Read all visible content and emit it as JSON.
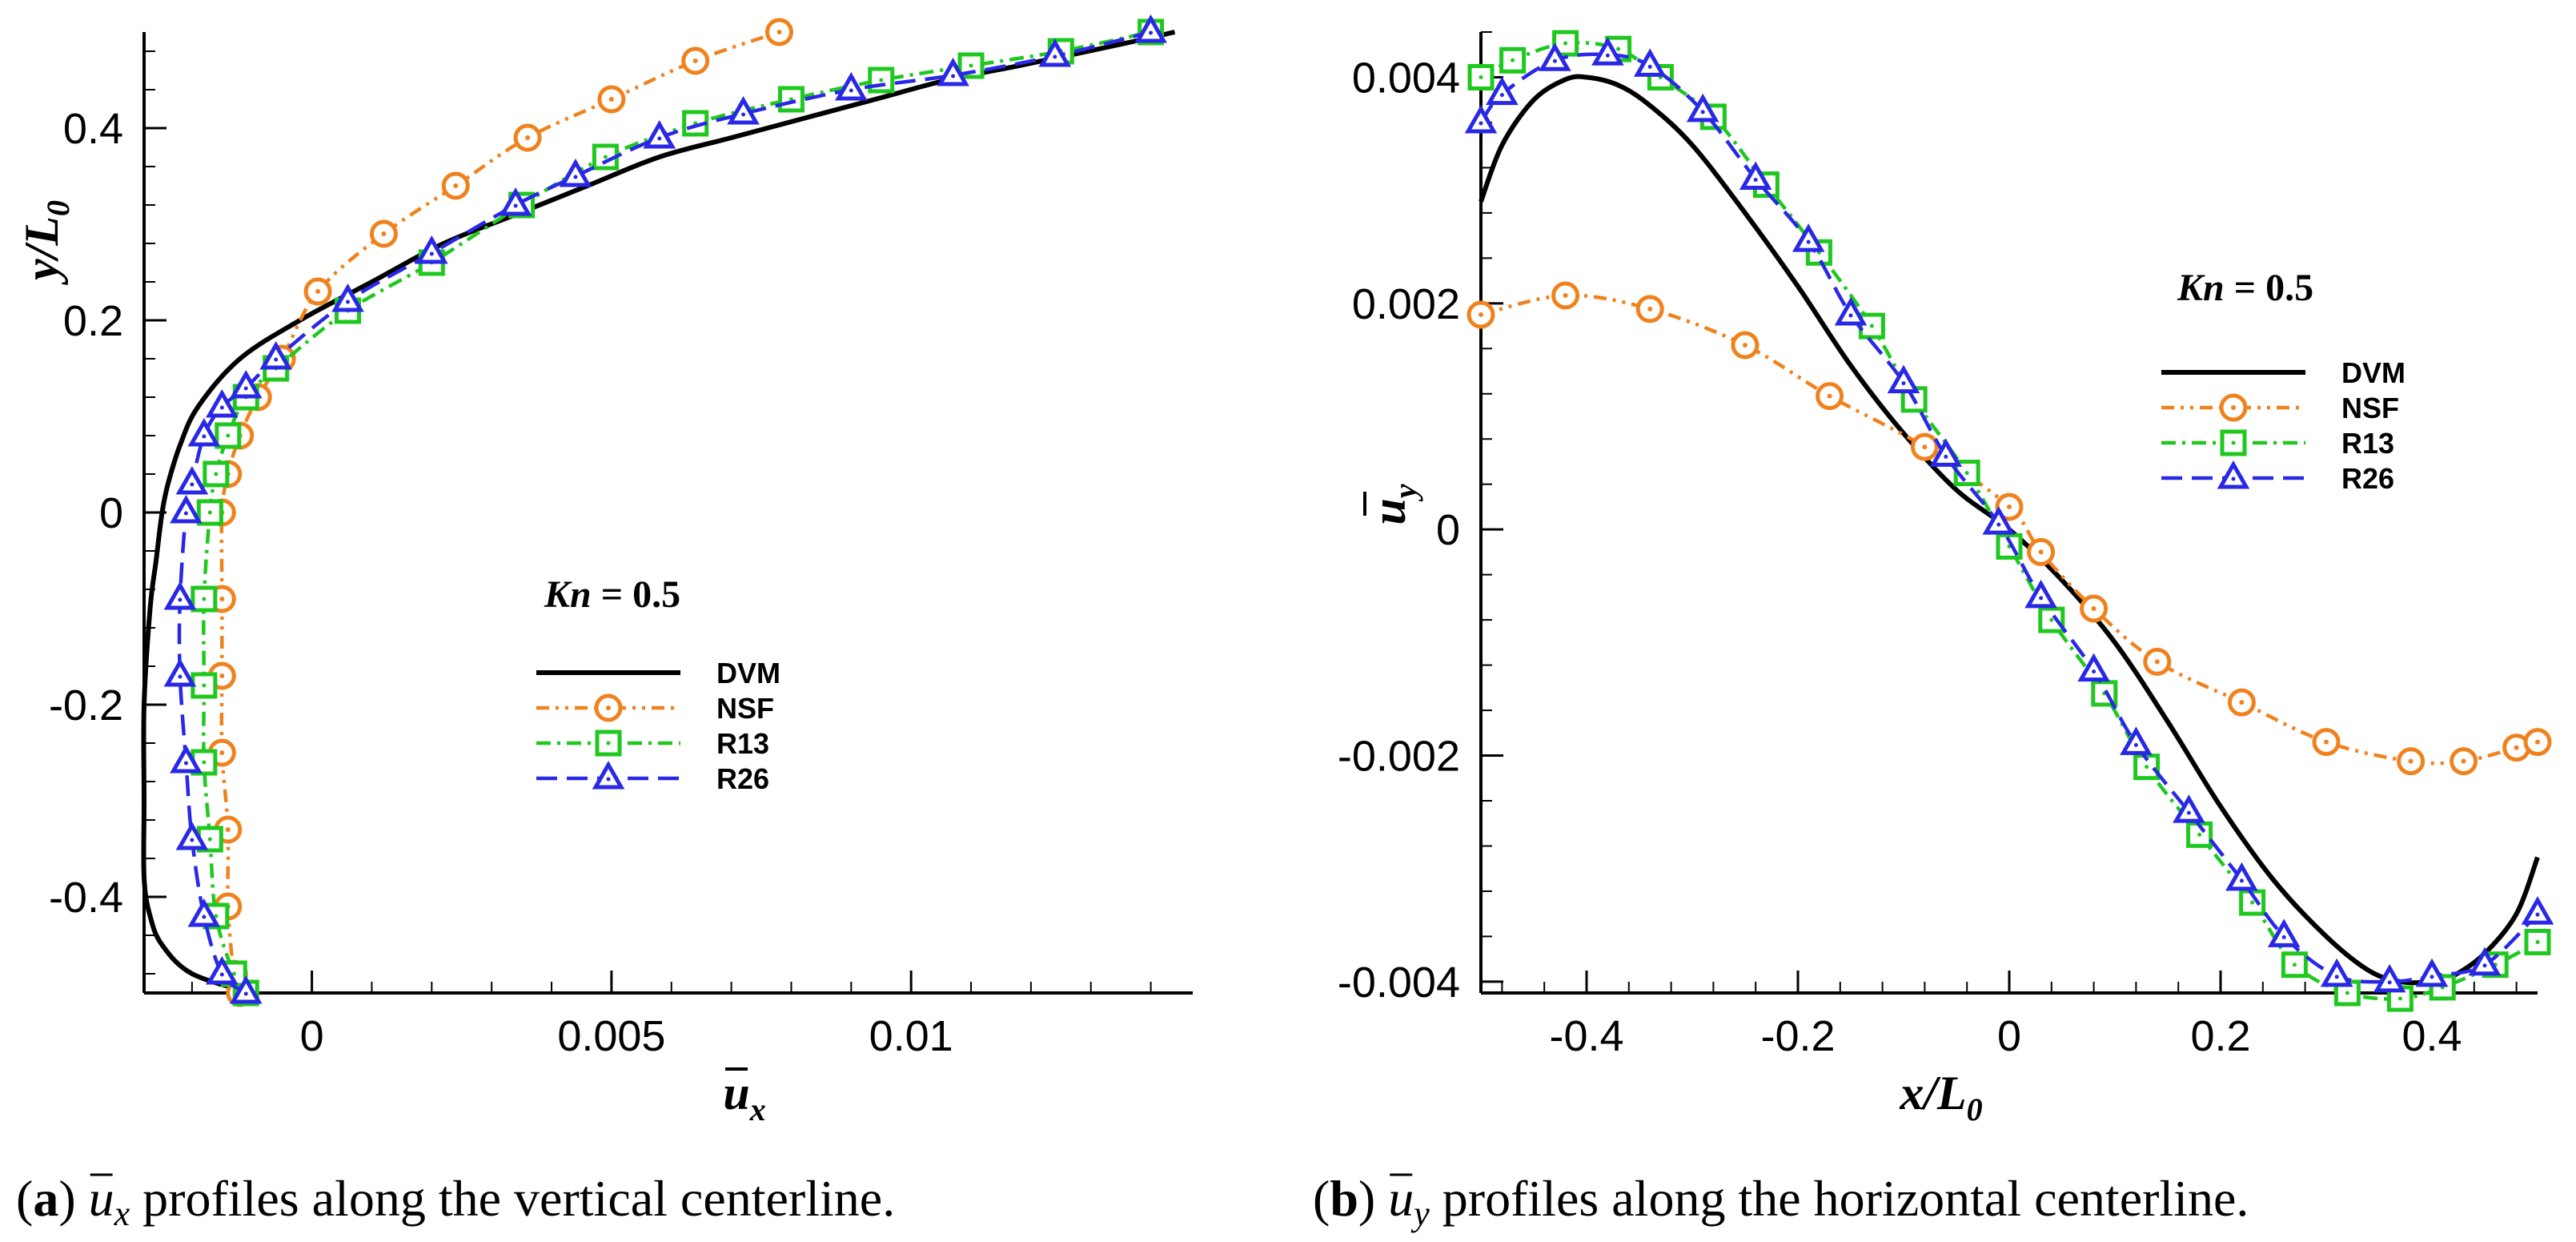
{
  "chart_data": [
    {
      "type": "line",
      "panel": "a",
      "orientation": "profile-vertical",
      "xlabel": "u_x",
      "xlabel_main": "u",
      "xlabel_sub": "x",
      "ylabel": "y/L0",
      "ylabel_main": "y/L",
      "ylabel_sub": "0",
      "xlim": [
        -0.0028,
        0.0147
      ],
      "ylim": [
        -0.5,
        0.5
      ],
      "xticks": [
        0,
        0.005,
        0.01
      ],
      "xtick_labels": [
        "0",
        "0.005",
        "0.01"
      ],
      "yticks": [
        -0.4,
        -0.2,
        0,
        0.2,
        0.4
      ],
      "ytick_labels": [
        "-0.4",
        "-0.2",
        "0",
        "0.2",
        "0.4"
      ],
      "annotation": {
        "var": "Kn",
        "rest": " = 0.5"
      },
      "legend": [
        "DVM",
        "NSF",
        "R13",
        "R26"
      ],
      "caption": {
        "label": "(a)",
        "var": "u",
        "sub": "x",
        "text": "profiles along the vertical centerline."
      },
      "series": [
        {
          "name": "DVM",
          "color": "#000000",
          "dash": "",
          "marker": "none",
          "x": [
            -0.001,
            -0.002,
            -0.0025,
            -0.0027,
            -0.0028,
            -0.0028,
            -0.0028,
            -0.0027,
            -0.0026,
            -0.0025,
            -0.0024,
            -0.0022,
            -0.0019,
            -0.0012,
            -0.0002,
            0.001,
            0.0022,
            0.0034,
            0.0046,
            0.0058,
            0.007,
            0.0082,
            0.0094,
            0.0106,
            0.0118,
            0.0128,
            0.0137,
            0.0144
          ],
          "y": [
            -0.5,
            -0.48,
            -0.45,
            -0.42,
            -0.38,
            -0.3,
            -0.2,
            -0.1,
            -0.05,
            0.0,
            0.03,
            0.07,
            0.11,
            0.16,
            0.2,
            0.24,
            0.28,
            0.31,
            0.34,
            0.37,
            0.39,
            0.41,
            0.43,
            0.45,
            0.465,
            0.478,
            0.49,
            0.5
          ]
        },
        {
          "name": "NSF",
          "color": "#f0821e",
          "dash": "16 8 4 8 4 8",
          "marker": "circle",
          "x": [
            -0.0012,
            -0.0013,
            -0.0014,
            -0.0014,
            -0.0015,
            -0.0015,
            -0.0015,
            -0.0015,
            -0.0014,
            -0.0012,
            -0.0009,
            -0.0005,
            0.0001,
            0.0012,
            0.0024,
            0.0036,
            0.005,
            0.0064,
            0.0078
          ],
          "y": [
            -0.5,
            -0.48,
            -0.41,
            -0.33,
            -0.25,
            -0.17,
            -0.09,
            0.0,
            0.04,
            0.08,
            0.12,
            0.16,
            0.23,
            0.29,
            0.34,
            0.39,
            0.43,
            0.47,
            0.5
          ]
        },
        {
          "name": "R13",
          "color": "#1ec81e",
          "dash": "18 8 4 8",
          "marker": "square",
          "x": [
            -0.0011,
            -0.0013,
            -0.0016,
            -0.0017,
            -0.0018,
            -0.0018,
            -0.0018,
            -0.0017,
            -0.0016,
            -0.0014,
            -0.0011,
            -0.0006,
            0.0006,
            0.002,
            0.0035,
            0.0049,
            0.0064,
            0.008,
            0.0095,
            0.011,
            0.0125,
            0.014
          ],
          "y": [
            -0.5,
            -0.48,
            -0.42,
            -0.34,
            -0.26,
            -0.18,
            -0.09,
            0.0,
            0.04,
            0.08,
            0.12,
            0.15,
            0.21,
            0.26,
            0.32,
            0.37,
            0.405,
            0.43,
            0.45,
            0.465,
            0.48,
            0.5
          ]
        },
        {
          "name": "R26",
          "color": "#2828e6",
          "dash": "26 12",
          "marker": "triangle",
          "x": [
            -0.0011,
            -0.0015,
            -0.0018,
            -0.002,
            -0.0021,
            -0.0022,
            -0.0022,
            -0.0021,
            -0.002,
            -0.0018,
            -0.0015,
            -0.0011,
            -0.0006,
            0.0006,
            0.002,
            0.0034,
            0.0044,
            0.0058,
            0.0072,
            0.009,
            0.0107,
            0.0124,
            0.014
          ],
          "y": [
            -0.5,
            -0.48,
            -0.42,
            -0.34,
            -0.26,
            -0.17,
            -0.09,
            0.0,
            0.03,
            0.08,
            0.11,
            0.13,
            0.16,
            0.22,
            0.27,
            0.32,
            0.35,
            0.39,
            0.415,
            0.44,
            0.455,
            0.475,
            0.5
          ]
        }
      ]
    },
    {
      "type": "line",
      "panel": "b",
      "orientation": "profile-horizontal",
      "xlabel": "x/L0",
      "xlabel_main": "x/L",
      "xlabel_sub": "0",
      "ylabel": "u_y",
      "ylabel_main": "u",
      "ylabel_sub": "y",
      "xlim": [
        -0.5,
        0.5
      ],
      "ylim": [
        -0.0041,
        0.0044
      ],
      "xticks": [
        -0.4,
        -0.2,
        0,
        0.2,
        0.4
      ],
      "xtick_labels": [
        "-0.4",
        "-0.2",
        "0",
        "0.2",
        "0.4"
      ],
      "yticks": [
        -0.004,
        -0.002,
        0,
        0.002,
        0.004
      ],
      "ytick_labels": [
        "-0.004",
        "-0.002",
        "0",
        "0.002",
        "0.004"
      ],
      "annotation": {
        "var": "Kn",
        "rest": " = 0.5"
      },
      "legend": [
        "DVM",
        "NSF",
        "R13",
        "R26"
      ],
      "caption": {
        "label": "(b)",
        "var": "u",
        "sub": "y",
        "text": "profiles along the horizontal centerline."
      },
      "series": [
        {
          "name": "DVM",
          "color": "#000000",
          "dash": "",
          "marker": "none",
          "x": [
            -0.5,
            -0.48,
            -0.45,
            -0.42,
            -0.4,
            -0.37,
            -0.34,
            -0.3,
            -0.25,
            -0.2,
            -0.15,
            -0.1,
            -0.05,
            0.0,
            0.05,
            0.1,
            0.15,
            0.2,
            0.25,
            0.3,
            0.34,
            0.37,
            0.4,
            0.42,
            0.45,
            0.48,
            0.5
          ],
          "y": [
            0.0029,
            0.0034,
            0.0038,
            0.00398,
            0.004,
            0.00393,
            0.00375,
            0.0034,
            0.0028,
            0.00215,
            0.00145,
            0.00085,
            0.00035,
            0.0,
            -0.00045,
            -0.001,
            -0.0017,
            -0.00245,
            -0.0031,
            -0.0036,
            -0.0039,
            -0.004,
            -0.004,
            -0.00395,
            -0.00375,
            -0.0034,
            -0.0029
          ]
        },
        {
          "name": "NSF",
          "color": "#f0821e",
          "dash": "16 8 4 8 4 8",
          "marker": "circle",
          "x": [
            -0.5,
            -0.42,
            -0.34,
            -0.25,
            -0.17,
            -0.08,
            0.0,
            0.03,
            0.08,
            0.14,
            0.22,
            0.3,
            0.38,
            0.43,
            0.48,
            0.5
          ],
          "y": [
            0.0019,
            0.00207,
            0.00195,
            0.00163,
            0.00118,
            0.00073,
            0.0002,
            -0.0002,
            -0.0007,
            -0.00117,
            -0.00153,
            -0.00188,
            -0.00205,
            -0.00205,
            -0.00193,
            -0.00188
          ]
        },
        {
          "name": "R13",
          "color": "#1ec81e",
          "dash": "18 8 4 8",
          "marker": "square",
          "x": [
            -0.5,
            -0.47,
            -0.42,
            -0.37,
            -0.33,
            -0.28,
            -0.23,
            -0.18,
            -0.13,
            -0.09,
            -0.04,
            0.0,
            0.04,
            0.09,
            0.13,
            0.18,
            0.23,
            0.27,
            0.32,
            0.37,
            0.41,
            0.46,
            0.5
          ],
          "y": [
            0.004,
            0.00415,
            0.0043,
            0.00425,
            0.004,
            0.00365,
            0.00305,
            0.00245,
            0.0018,
            0.00115,
            0.0005,
            -0.00015,
            -0.0008,
            -0.00145,
            -0.0021,
            -0.0027,
            -0.0033,
            -0.00385,
            -0.0041,
            -0.00415,
            -0.00405,
            -0.00385,
            -0.00365
          ]
        },
        {
          "name": "R26",
          "color": "#2828e6",
          "dash": "26 12",
          "marker": "triangle",
          "x": [
            -0.5,
            -0.48,
            -0.43,
            -0.38,
            -0.34,
            -0.29,
            -0.24,
            -0.19,
            -0.15,
            -0.1,
            -0.06,
            -0.01,
            0.03,
            0.08,
            0.12,
            0.17,
            0.22,
            0.26,
            0.31,
            0.36,
            0.4,
            0.45,
            0.5
          ],
          "y": [
            0.0036,
            0.00385,
            0.00415,
            0.0042,
            0.0041,
            0.0037,
            0.0031,
            0.00255,
            0.0019,
            0.0013,
            0.00065,
            5e-05,
            -0.0006,
            -0.00125,
            -0.0019,
            -0.0025,
            -0.0031,
            -0.0036,
            -0.00395,
            -0.004,
            -0.00395,
            -0.00385,
            -0.0034
          ]
        }
      ]
    }
  ]
}
